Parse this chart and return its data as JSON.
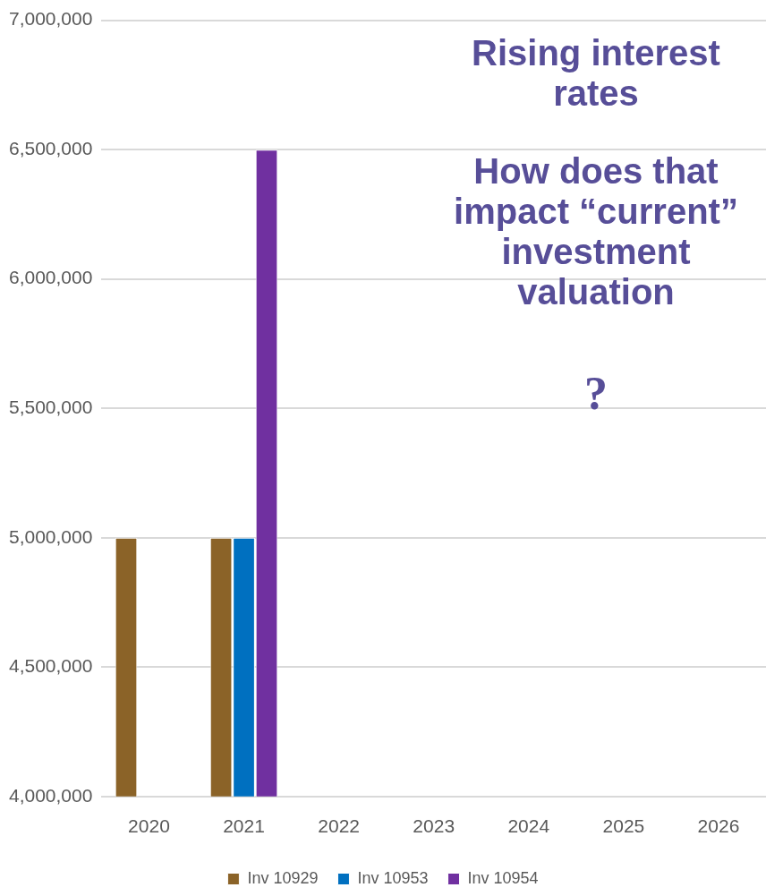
{
  "chart_data": {
    "type": "bar",
    "categories": [
      "2020",
      "2021",
      "2022",
      "2023",
      "2024",
      "2025",
      "2026"
    ],
    "series": [
      {
        "name": "Inv 10929",
        "color": "#8b6328",
        "values": [
          5000000,
          5000000,
          null,
          null,
          null,
          null,
          null
        ]
      },
      {
        "name": "Inv 10953",
        "color": "#0070c0",
        "values": [
          null,
          5000000,
          null,
          null,
          null,
          null,
          null
        ]
      },
      {
        "name": "Inv 10954",
        "color": "#7030a0",
        "values": [
          null,
          6500000,
          null,
          null,
          null,
          null,
          null
        ]
      }
    ],
    "ylim": [
      4000000,
      7000000
    ],
    "yticks": [
      {
        "value": 4000000,
        "label": "4,000,000"
      },
      {
        "value": 4500000,
        "label": "4,500,000"
      },
      {
        "value": 5000000,
        "label": "5,000,000"
      },
      {
        "value": 5500000,
        "label": "5,500,000"
      },
      {
        "value": 6000000,
        "label": "6,000,000"
      },
      {
        "value": 6500000,
        "label": "6,500,000"
      },
      {
        "value": 7000000,
        "label": "7,000,000"
      }
    ],
    "grid": "y",
    "legend": "bottom",
    "annotations": [
      "Rising interest rates",
      "How does that impact “current” investment valuation",
      "?"
    ]
  }
}
